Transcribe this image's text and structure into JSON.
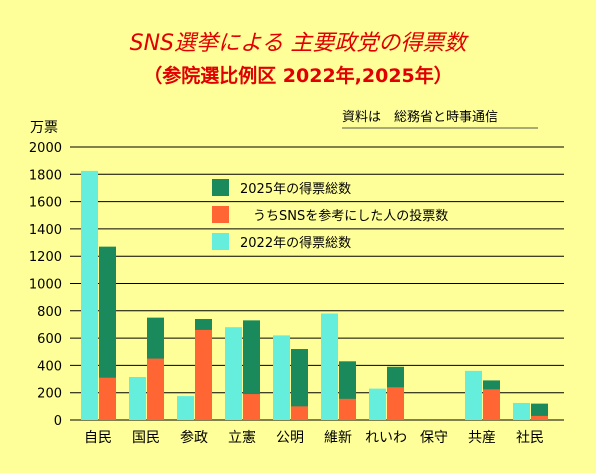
{
  "chart_data": {
    "type": "bar",
    "title": "SNS選挙による 主要政党の得票数",
    "subtitle": "（参院選比例区 2022年,2025年）",
    "source": "資料は　総務省と時事通信",
    "ylabel": "万票",
    "ylim": [
      0,
      2000
    ],
    "yticks": [
      "0",
      "200",
      "400",
      "600",
      "800",
      "1000",
      "1200",
      "1400",
      "1600",
      "1800",
      "2000"
    ],
    "grid": true,
    "legend_position": "top-center",
    "categories": [
      "自民",
      "国民",
      "参政",
      "立憲",
      "公明",
      "維新",
      "れいわ",
      "保守",
      "共産",
      "社民"
    ],
    "series": [
      {
        "name": "2025年の得票総数",
        "color": "#1a8a5c",
        "values": [
          1270,
          750,
          740,
          730,
          520,
          430,
          390,
          0,
          290,
          120
        ]
      },
      {
        "name": "うちSNSを参考にした人の投票数",
        "color": "#ff6633",
        "values": [
          310,
          450,
          660,
          190,
          100,
          155,
          240,
          0,
          225,
          30
        ]
      },
      {
        "name": "2022年の得票総数",
        "color": "#66eedd",
        "values": [
          1825,
          315,
          175,
          680,
          620,
          780,
          230,
          0,
          360,
          125
        ]
      }
    ]
  }
}
